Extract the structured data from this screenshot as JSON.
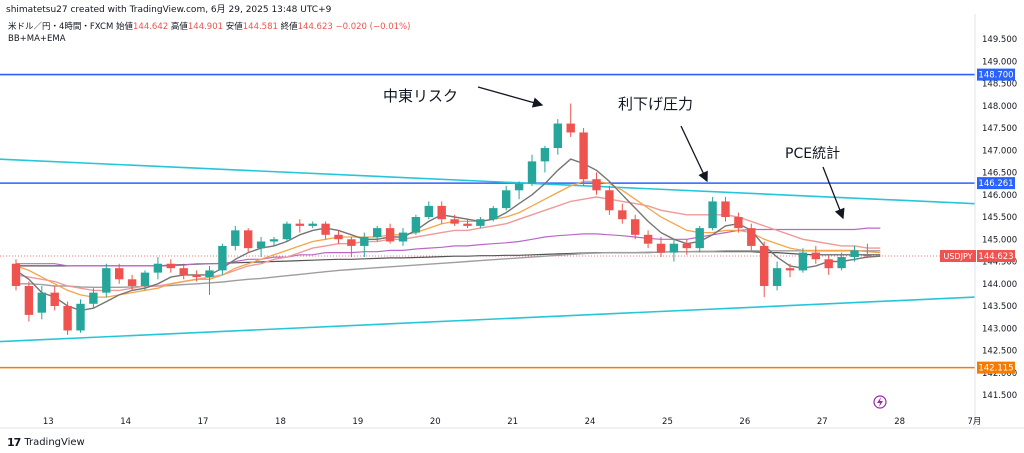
{
  "header": {
    "credit": "shimatetsu27 created with TradingView.com, 6月 29, 2025 13:48 UTC+9",
    "symbol": "米ドル／円・4時間・FXCM",
    "open_label": "始値",
    "open": "144.642",
    "high_label": "高値",
    "high": "144.901",
    "low_label": "安値",
    "low": "144.581",
    "close_label": "終値",
    "close": "144.623",
    "change": "−0.020 (−0.01%)",
    "indicators": "BB+MA+EMA"
  },
  "brand": "TradingView",
  "annotations": {
    "middle_east": "中東リスク",
    "rate_cut": "利下げ圧力",
    "pce": "PCE統計"
  },
  "colors": {
    "up": "#26a69a",
    "down": "#ef5350",
    "hline_blue": "#2962ff",
    "hline_orange": "#f57c00",
    "trend": "#26c6da",
    "bb_mid": "#ef9a9a",
    "bb_band": "#ba68c8",
    "ma_gray": "#9e9e9e",
    "ema_short": "#757575",
    "ema_orange": "#f5a54b"
  },
  "chart_data": {
    "type": "candlestick",
    "title": "米ドル／円・4時間・FXCM",
    "ylim": [
      141.3,
      149.9
    ],
    "y_ticks": [
      "141.500",
      "142.000",
      "142.500",
      "143.000",
      "143.500",
      "144.000",
      "144.500",
      "145.000",
      "145.500",
      "146.000",
      "146.500",
      "147.000",
      "147.500",
      "148.000",
      "148.500",
      "149.000",
      "149.500"
    ],
    "x_ticks": [
      "13",
      "14",
      "17",
      "18",
      "19",
      "20",
      "21",
      "24",
      "25",
      "26",
      "27",
      "28",
      "7月"
    ],
    "symbol_tag": "USDJPY",
    "last_price": "144.623",
    "horizontal_levels": [
      {
        "value": 148.7,
        "label": "148.700",
        "color": "#2962ff"
      },
      {
        "value": 146.261,
        "label": "146.261",
        "color": "#2962ff"
      },
      {
        "value": 142.115,
        "label": "142.115",
        "color": "#f57c00"
      }
    ],
    "candles": [
      {
        "o": 144.45,
        "h": 144.55,
        "l": 143.85,
        "c": 143.95
      },
      {
        "o": 143.95,
        "h": 144.05,
        "l": 143.15,
        "c": 143.3
      },
      {
        "o": 143.35,
        "h": 143.95,
        "l": 143.2,
        "c": 143.8
      },
      {
        "o": 143.8,
        "h": 143.95,
        "l": 143.4,
        "c": 143.5
      },
      {
        "o": 143.5,
        "h": 143.6,
        "l": 142.85,
        "c": 142.95
      },
      {
        "o": 142.95,
        "h": 143.65,
        "l": 142.9,
        "c": 143.55
      },
      {
        "o": 143.55,
        "h": 143.9,
        "l": 143.45,
        "c": 143.8
      },
      {
        "o": 143.8,
        "h": 144.45,
        "l": 143.7,
        "c": 144.35
      },
      {
        "o": 144.35,
        "h": 144.45,
        "l": 144.0,
        "c": 144.1
      },
      {
        "o": 144.1,
        "h": 144.2,
        "l": 143.85,
        "c": 143.95
      },
      {
        "o": 143.95,
        "h": 144.3,
        "l": 143.85,
        "c": 144.25
      },
      {
        "o": 144.25,
        "h": 144.6,
        "l": 144.1,
        "c": 144.45
      },
      {
        "o": 144.45,
        "h": 144.55,
        "l": 144.25,
        "c": 144.35
      },
      {
        "o": 144.35,
        "h": 144.45,
        "l": 144.1,
        "c": 144.2
      },
      {
        "o": 144.2,
        "h": 144.3,
        "l": 144.05,
        "c": 144.15
      },
      {
        "o": 144.15,
        "h": 144.4,
        "l": 143.75,
        "c": 144.3
      },
      {
        "o": 144.3,
        "h": 144.9,
        "l": 144.2,
        "c": 144.85
      },
      {
        "o": 144.85,
        "h": 145.3,
        "l": 144.75,
        "c": 145.2
      },
      {
        "o": 145.2,
        "h": 145.25,
        "l": 144.7,
        "c": 144.8
      },
      {
        "o": 144.8,
        "h": 145.05,
        "l": 144.6,
        "c": 144.95
      },
      {
        "o": 144.95,
        "h": 145.05,
        "l": 144.85,
        "c": 145.0
      },
      {
        "o": 145.0,
        "h": 145.4,
        "l": 144.95,
        "c": 145.35
      },
      {
        "o": 145.35,
        "h": 145.45,
        "l": 145.15,
        "c": 145.3
      },
      {
        "o": 145.3,
        "h": 145.4,
        "l": 145.25,
        "c": 145.35
      },
      {
        "o": 145.35,
        "h": 145.4,
        "l": 145.0,
        "c": 145.1
      },
      {
        "o": 145.1,
        "h": 145.2,
        "l": 144.9,
        "c": 145.0
      },
      {
        "o": 145.0,
        "h": 145.05,
        "l": 144.6,
        "c": 144.85
      },
      {
        "o": 144.85,
        "h": 145.15,
        "l": 144.6,
        "c": 145.05
      },
      {
        "o": 145.05,
        "h": 145.3,
        "l": 144.95,
        "c": 145.25
      },
      {
        "o": 145.25,
        "h": 145.35,
        "l": 144.9,
        "c": 144.95
      },
      {
        "o": 144.95,
        "h": 145.25,
        "l": 144.85,
        "c": 145.15
      },
      {
        "o": 145.15,
        "h": 145.55,
        "l": 145.1,
        "c": 145.5
      },
      {
        "o": 145.5,
        "h": 145.85,
        "l": 145.45,
        "c": 145.75
      },
      {
        "o": 145.75,
        "h": 145.85,
        "l": 145.35,
        "c": 145.45
      },
      {
        "o": 145.45,
        "h": 145.55,
        "l": 145.3,
        "c": 145.35
      },
      {
        "o": 145.35,
        "h": 145.45,
        "l": 145.25,
        "c": 145.3
      },
      {
        "o": 145.3,
        "h": 145.5,
        "l": 145.25,
        "c": 145.45
      },
      {
        "o": 145.45,
        "h": 145.75,
        "l": 145.4,
        "c": 145.7
      },
      {
        "o": 145.7,
        "h": 146.2,
        "l": 145.65,
        "c": 146.1
      },
      {
        "o": 146.1,
        "h": 146.3,
        "l": 145.9,
        "c": 146.25
      },
      {
        "o": 146.25,
        "h": 146.9,
        "l": 146.2,
        "c": 146.75
      },
      {
        "o": 146.75,
        "h": 147.1,
        "l": 146.5,
        "c": 147.05
      },
      {
        "o": 147.05,
        "h": 147.7,
        "l": 146.9,
        "c": 147.6
      },
      {
        "o": 147.6,
        "h": 148.05,
        "l": 147.3,
        "c": 147.4
      },
      {
        "o": 147.4,
        "h": 147.5,
        "l": 146.2,
        "c": 146.35
      },
      {
        "o": 146.35,
        "h": 146.5,
        "l": 146.0,
        "c": 146.1
      },
      {
        "o": 146.1,
        "h": 146.2,
        "l": 145.55,
        "c": 145.65
      },
      {
        "o": 145.65,
        "h": 145.8,
        "l": 145.35,
        "c": 145.45
      },
      {
        "o": 145.45,
        "h": 145.55,
        "l": 145.0,
        "c": 145.1
      },
      {
        "o": 145.1,
        "h": 145.2,
        "l": 144.8,
        "c": 144.9
      },
      {
        "o": 144.9,
        "h": 145.05,
        "l": 144.6,
        "c": 144.7
      },
      {
        "o": 144.7,
        "h": 145.0,
        "l": 144.5,
        "c": 144.9
      },
      {
        "o": 144.9,
        "h": 145.0,
        "l": 144.65,
        "c": 144.8
      },
      {
        "o": 144.8,
        "h": 145.3,
        "l": 144.7,
        "c": 145.25
      },
      {
        "o": 145.25,
        "h": 145.95,
        "l": 145.2,
        "c": 145.85
      },
      {
        "o": 145.85,
        "h": 145.95,
        "l": 145.4,
        "c": 145.5
      },
      {
        "o": 145.5,
        "h": 145.6,
        "l": 145.15,
        "c": 145.25
      },
      {
        "o": 145.25,
        "h": 145.35,
        "l": 144.75,
        "c": 144.85
      },
      {
        "o": 144.85,
        "h": 144.95,
        "l": 143.7,
        "c": 143.95
      },
      {
        "o": 143.95,
        "h": 144.5,
        "l": 143.85,
        "c": 144.35
      },
      {
        "o": 144.35,
        "h": 144.45,
        "l": 144.15,
        "c": 144.3
      },
      {
        "o": 144.3,
        "h": 144.8,
        "l": 144.25,
        "c": 144.7
      },
      {
        "o": 144.7,
        "h": 144.85,
        "l": 144.45,
        "c": 144.55
      },
      {
        "o": 144.55,
        "h": 144.65,
        "l": 144.2,
        "c": 144.35
      },
      {
        "o": 144.35,
        "h": 144.7,
        "l": 144.3,
        "c": 144.6
      },
      {
        "o": 144.6,
        "h": 144.85,
        "l": 144.5,
        "c": 144.75
      },
      {
        "o": 144.64,
        "h": 144.9,
        "l": 144.58,
        "c": 144.62
      }
    ],
    "trendlines": [
      {
        "from": [
          0,
          146.8
        ],
        "to": [
          975,
          145.8
        ],
        "color": "#26c6da"
      },
      {
        "from": [
          0,
          142.7
        ],
        "to": [
          975,
          143.7
        ],
        "color": "#26c6da"
      }
    ],
    "overlays": {
      "ema_short": [
        144.3,
        144.1,
        143.8,
        143.7,
        143.5,
        143.4,
        143.45,
        143.6,
        143.75,
        143.85,
        143.9,
        144.0,
        144.15,
        144.2,
        144.2,
        144.2,
        144.35,
        144.55,
        144.7,
        144.8,
        144.85,
        144.95,
        145.1,
        145.2,
        145.25,
        145.2,
        145.1,
        145.0,
        145.0,
        145.05,
        145.05,
        145.2,
        145.4,
        145.55,
        145.5,
        145.45,
        145.4,
        145.45,
        145.6,
        145.8,
        146.0,
        146.25,
        146.55,
        146.8,
        146.7,
        146.55,
        146.3,
        146.0,
        145.7,
        145.4,
        145.15,
        145.0,
        144.9,
        144.95,
        145.1,
        145.3,
        145.35,
        145.2,
        144.85,
        144.6,
        144.4,
        144.35,
        144.4,
        144.5,
        144.5,
        144.55,
        144.6,
        144.62
      ],
      "ema_orange": [
        144.4,
        144.3,
        144.15,
        144.0,
        143.85,
        143.75,
        143.7,
        143.7,
        143.75,
        143.8,
        143.85,
        143.9,
        144.0,
        144.05,
        144.1,
        144.1,
        144.2,
        144.35,
        144.45,
        144.55,
        144.65,
        144.75,
        144.85,
        144.95,
        145.0,
        145.05,
        145.05,
        145.05,
        145.05,
        145.1,
        145.1,
        145.15,
        145.25,
        145.35,
        145.4,
        145.4,
        145.4,
        145.45,
        145.5,
        145.6,
        145.75,
        145.9,
        146.05,
        146.2,
        146.3,
        146.3,
        146.25,
        146.1,
        145.9,
        145.7,
        145.5,
        145.35,
        145.2,
        145.15,
        145.15,
        145.2,
        145.2,
        145.15,
        145.0,
        144.9,
        144.8,
        144.75,
        144.75,
        144.75,
        144.75,
        144.75,
        144.72,
        144.7
      ],
      "bb_mid": [
        144.2,
        144.15,
        144.1,
        144.05,
        143.95,
        143.9,
        143.85,
        143.85,
        143.85,
        143.9,
        143.95,
        143.95,
        144.0,
        144.05,
        144.1,
        144.15,
        144.2,
        144.3,
        144.4,
        144.45,
        144.55,
        144.6,
        144.7,
        144.8,
        144.85,
        144.9,
        144.9,
        144.95,
        144.95,
        145.0,
        145.0,
        145.05,
        145.1,
        145.15,
        145.2,
        145.2,
        145.25,
        145.3,
        145.35,
        145.45,
        145.55,
        145.65,
        145.75,
        145.85,
        145.9,
        145.95,
        145.9,
        145.85,
        145.8,
        145.75,
        145.65,
        145.6,
        145.55,
        145.55,
        145.55,
        145.55,
        145.5,
        145.4,
        145.3,
        145.2,
        145.1,
        145.0,
        144.95,
        144.9,
        144.85,
        144.85,
        144.8,
        144.8
      ],
      "bb_band": [
        144.45,
        144.45,
        144.45,
        144.45,
        144.4,
        144.4,
        144.4,
        144.4,
        144.4,
        144.4,
        144.4,
        144.4,
        144.4,
        144.42,
        144.45,
        144.45,
        144.45,
        144.5,
        144.55,
        144.55,
        144.6,
        144.6,
        144.65,
        144.65,
        144.7,
        144.7,
        144.7,
        144.72,
        144.72,
        144.75,
        144.75,
        144.78,
        144.8,
        144.82,
        144.85,
        144.85,
        144.88,
        144.9,
        144.92,
        144.95,
        145.0,
        145.05,
        145.08,
        145.1,
        145.12,
        145.12,
        145.1,
        145.08,
        145.05,
        145.02,
        145.0,
        145.0,
        145.0,
        145.05,
        145.1,
        145.15,
        145.2,
        145.22,
        145.22,
        145.22,
        145.22,
        145.22,
        145.22,
        145.22,
        145.22,
        145.22,
        145.25,
        145.25
      ],
      "ma_gray": [
        144.0,
        144.0,
        143.98,
        143.95,
        143.95,
        143.93,
        143.92,
        143.92,
        143.92,
        143.93,
        143.94,
        143.95,
        143.96,
        143.98,
        144.0,
        144.02,
        144.04,
        144.07,
        144.1,
        144.12,
        144.15,
        144.18,
        144.21,
        144.24,
        144.27,
        144.3,
        144.32,
        144.34,
        144.36,
        144.38,
        144.4,
        144.42,
        144.44,
        144.46,
        144.48,
        144.5,
        144.52,
        144.54,
        144.56,
        144.58,
        144.6,
        144.62,
        144.64,
        144.66,
        144.68,
        144.69,
        144.7,
        144.7,
        144.7,
        144.71,
        144.71,
        144.72,
        144.72,
        144.73,
        144.73,
        144.74,
        144.74,
        144.74,
        144.74,
        144.74,
        144.74,
        144.74,
        144.74,
        144.74,
        144.74,
        144.74,
        144.74,
        144.74
      ],
      "ma_dark": [
        144.4,
        144.4,
        144.4,
        144.4,
        144.4,
        144.4,
        144.4,
        144.4,
        144.4,
        144.4,
        144.4,
        144.4,
        144.42,
        144.43,
        144.44,
        144.45,
        144.46,
        144.47,
        144.48,
        144.49,
        144.5,
        144.51,
        144.52,
        144.53,
        144.54,
        144.55,
        144.55,
        144.56,
        144.57,
        144.58,
        144.58,
        144.59,
        144.6,
        144.61,
        144.62,
        144.62,
        144.63,
        144.63,
        144.64,
        144.64,
        144.65,
        144.66,
        144.67,
        144.68,
        144.69,
        144.7,
        144.7,
        144.7,
        144.7,
        144.7,
        144.71,
        144.72,
        144.72,
        144.72,
        144.72,
        144.72,
        144.72,
        144.72,
        144.7,
        144.7,
        144.68,
        144.66,
        144.65,
        144.65,
        144.65,
        144.65,
        144.65,
        144.65
      ]
    }
  }
}
